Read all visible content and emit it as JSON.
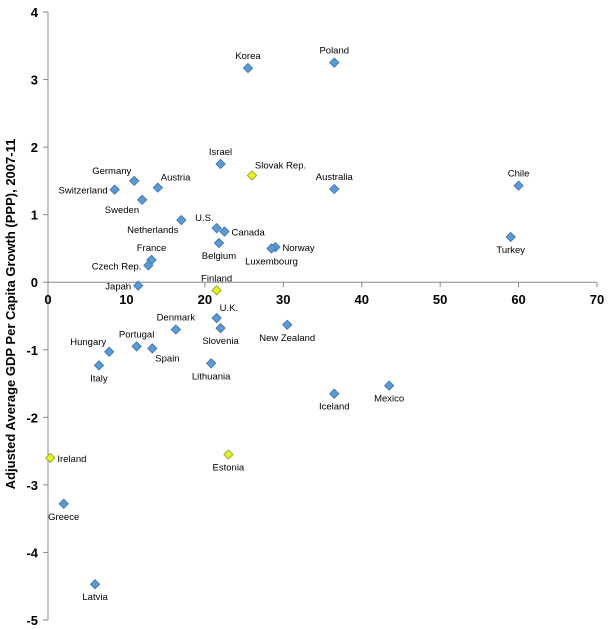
{
  "chart_data": {
    "type": "scatter",
    "title": "",
    "xlabel": "",
    "ylabel": "Adjusted Average GDP Per Capita Growth (PPP), 2007-11",
    "xlim": [
      0,
      70
    ],
    "ylim": [
      -5,
      4
    ],
    "xticks": [
      0,
      10,
      20,
      30,
      40,
      50,
      60,
      70
    ],
    "yticks": [
      -5,
      -4,
      -3,
      -2,
      -1,
      0,
      1,
      2,
      3,
      4
    ],
    "grid": false,
    "colors": {
      "default": "#5b9bd5",
      "highlight": "#e6f024",
      "marker_stroke": "#3a6fa8",
      "highlight_stroke": "#8a9a1a"
    },
    "points": [
      {
        "label": "Poland",
        "x": 36.5,
        "y": 3.25,
        "highlight": false,
        "anchor": "top"
      },
      {
        "label": "Korea",
        "x": 25.5,
        "y": 3.17,
        "highlight": false,
        "anchor": "top"
      },
      {
        "label": "Israel",
        "x": 22.0,
        "y": 1.75,
        "highlight": false,
        "anchor": "top"
      },
      {
        "label": "Slovak Rep.",
        "x": 26.0,
        "y": 1.58,
        "highlight": true,
        "anchor": "topright"
      },
      {
        "label": "Australia",
        "x": 36.5,
        "y": 1.38,
        "highlight": false,
        "anchor": "top"
      },
      {
        "label": "Chile",
        "x": 60.0,
        "y": 1.43,
        "highlight": false,
        "anchor": "top"
      },
      {
        "label": "Germany",
        "x": 11.0,
        "y": 1.5,
        "highlight": false,
        "anchor": "topleft"
      },
      {
        "label": "Austria",
        "x": 14.0,
        "y": 1.4,
        "highlight": false,
        "anchor": "topright"
      },
      {
        "label": "Switzerland",
        "x": 8.5,
        "y": 1.37,
        "highlight": false,
        "anchor": "left"
      },
      {
        "label": "Sweden",
        "x": 12.0,
        "y": 1.22,
        "highlight": false,
        "anchor": "bottomleft"
      },
      {
        "label": "Netherlands",
        "x": 17.0,
        "y": 0.92,
        "highlight": false,
        "anchor": "bottomleft"
      },
      {
        "label": "U.S.",
        "x": 21.5,
        "y": 0.8,
        "highlight": false,
        "anchor": "topleft"
      },
      {
        "label": "Canada",
        "x": 22.5,
        "y": 0.75,
        "highlight": false,
        "anchor": "right"
      },
      {
        "label": "Belgium",
        "x": 21.8,
        "y": 0.58,
        "highlight": false,
        "anchor": "bottom"
      },
      {
        "label": "Norway",
        "x": 29.0,
        "y": 0.52,
        "highlight": false,
        "anchor": "right"
      },
      {
        "label": "Luxembourg",
        "x": 28.5,
        "y": 0.5,
        "highlight": false,
        "anchor": "bottom"
      },
      {
        "label": "Turkey",
        "x": 59.0,
        "y": 0.67,
        "highlight": false,
        "anchor": "bottom"
      },
      {
        "label": "France",
        "x": 13.2,
        "y": 0.33,
        "highlight": false,
        "anchor": "top"
      },
      {
        "label": "Czech Rep.",
        "x": 12.8,
        "y": 0.25,
        "highlight": false,
        "anchor": "left"
      },
      {
        "label": "Japan",
        "x": 11.5,
        "y": -0.05,
        "highlight": false,
        "anchor": "left"
      },
      {
        "label": "Finland",
        "x": 21.5,
        "y": -0.12,
        "highlight": true,
        "anchor": "top"
      },
      {
        "label": "U.K.",
        "x": 21.5,
        "y": -0.53,
        "highlight": false,
        "anchor": "topright"
      },
      {
        "label": "Slovenia",
        "x": 22.0,
        "y": -0.68,
        "highlight": false,
        "anchor": "bottom"
      },
      {
        "label": "Denmark",
        "x": 16.3,
        "y": -0.7,
        "highlight": false,
        "anchor": "top"
      },
      {
        "label": "New Zealand",
        "x": 30.5,
        "y": -0.63,
        "highlight": false,
        "anchor": "bottom"
      },
      {
        "label": "Hungary",
        "x": 7.8,
        "y": -1.03,
        "highlight": false,
        "anchor": "topleft"
      },
      {
        "label": "Portugal",
        "x": 11.3,
        "y": -0.95,
        "highlight": false,
        "anchor": "top"
      },
      {
        "label": "Spain",
        "x": 13.3,
        "y": -0.98,
        "highlight": false,
        "anchor": "bottomright"
      },
      {
        "label": "Italy",
        "x": 6.5,
        "y": -1.23,
        "highlight": false,
        "anchor": "bottom"
      },
      {
        "label": "Lithuania",
        "x": 20.8,
        "y": -1.2,
        "highlight": false,
        "anchor": "bottom"
      },
      {
        "label": "Iceland",
        "x": 36.5,
        "y": -1.65,
        "highlight": false,
        "anchor": "bottom"
      },
      {
        "label": "Mexico",
        "x": 43.5,
        "y": -1.53,
        "highlight": false,
        "anchor": "bottom"
      },
      {
        "label": "Ireland",
        "x": 0.3,
        "y": -2.6,
        "highlight": true,
        "anchor": "right"
      },
      {
        "label": "Estonia",
        "x": 23.0,
        "y": -2.55,
        "highlight": true,
        "anchor": "bottom"
      },
      {
        "label": "Greece",
        "x": 2.0,
        "y": -3.28,
        "highlight": false,
        "anchor": "bottom"
      },
      {
        "label": "Latvia",
        "x": 6.0,
        "y": -4.47,
        "highlight": false,
        "anchor": "bottom"
      }
    ]
  }
}
